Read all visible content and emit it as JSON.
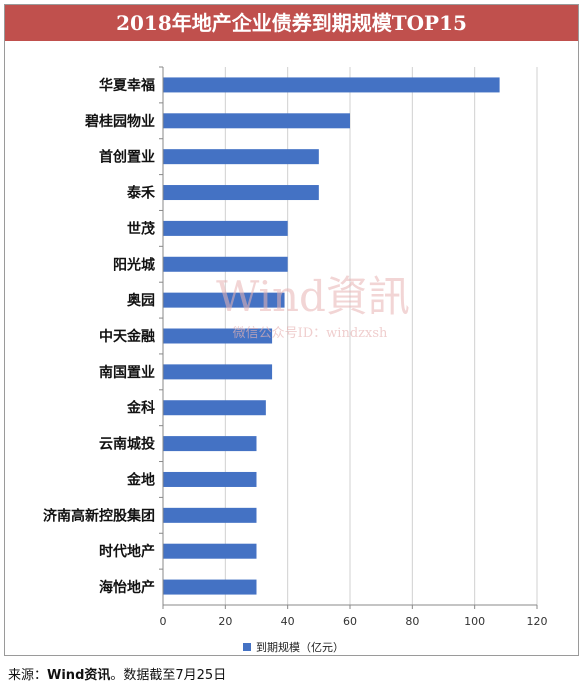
{
  "chart_data": {
    "type": "bar",
    "orientation": "horizontal",
    "title": "2018年地产企业债券到期规模TOP15",
    "categories": [
      "华夏幸福",
      "碧桂园物业",
      "首创置业",
      "泰禾",
      "世茂",
      "阳光城",
      "奥园",
      "中天金融",
      "南国置业",
      "金科",
      "云南城投",
      "金地",
      "济南高新控股集团",
      "时代地产",
      "海怡地产"
    ],
    "series": [
      {
        "name": "到期规模（亿元）",
        "values": [
          108,
          60,
          50,
          50,
          40,
          40,
          39,
          35,
          35,
          33,
          30,
          30,
          30,
          30,
          30
        ]
      }
    ],
    "xlim": [
      0,
      120
    ],
    "xticks": [
      "0",
      "20",
      "40",
      "60",
      "80",
      "100",
      "120"
    ],
    "grid": true,
    "legend": "bottom-center",
    "bar_color": "#4472c4"
  },
  "watermark": {
    "main": "Wind資訊",
    "sub": "微信公众号ID：windzxsh"
  },
  "footer": {
    "source_label": "来源：",
    "source_name": "Wind资讯",
    "note": "。数据截至7月25日"
  }
}
